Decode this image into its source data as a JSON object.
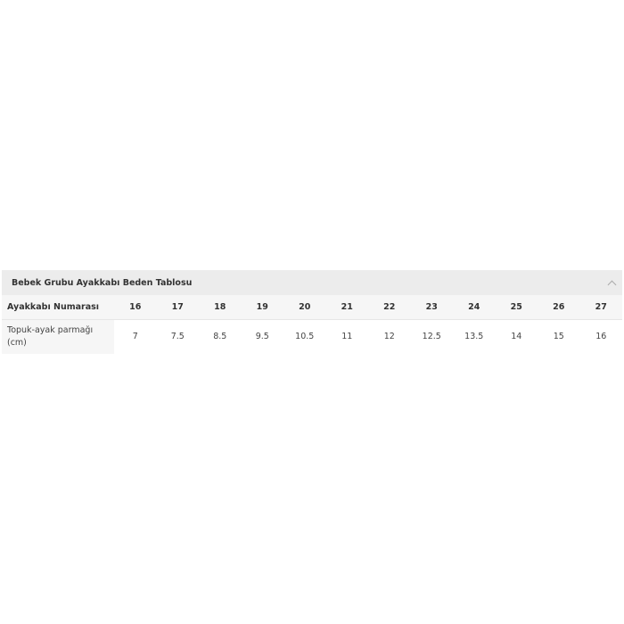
{
  "panel": {
    "title": "Bebek Grubu Ayakkabı Beden Tablosu",
    "toggle_icon": "chevron-up-icon"
  },
  "table": {
    "rows": [
      {
        "label": "Ayakkabı Numarası",
        "values": [
          "16",
          "17",
          "18",
          "19",
          "20",
          "21",
          "22",
          "23",
          "24",
          "25",
          "26",
          "27"
        ]
      },
      {
        "label": "Topuk-ayak parmağı (cm)",
        "values": [
          "7",
          "7.5",
          "8.5",
          "9.5",
          "10.5",
          "11",
          "12",
          "12.5",
          "13.5",
          "14",
          "15",
          "16"
        ]
      }
    ]
  }
}
